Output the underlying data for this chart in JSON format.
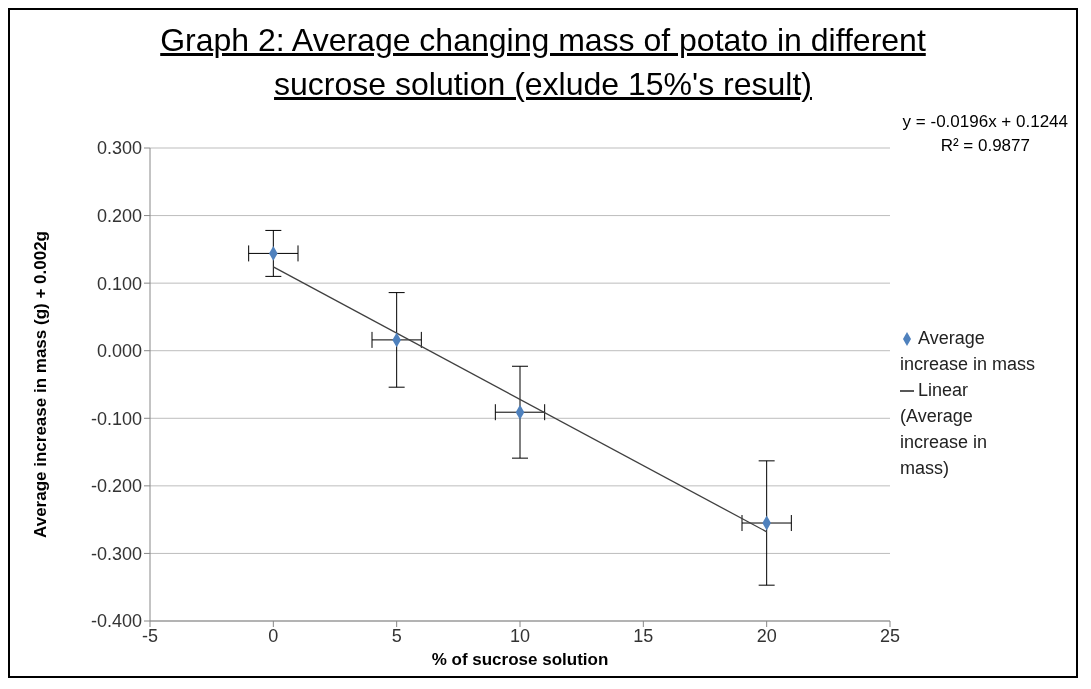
{
  "chart_data": {
    "type": "scatter",
    "title": "Graph 2: Average changing mass of potato in different sucrose solution (exlude 15%'s result)",
    "xlabel": "% of sucrose solution",
    "ylabel": "Average increase in mass (g) + 0.002g",
    "x": [
      0,
      5,
      10,
      20
    ],
    "series": [
      {
        "name": "Average increase in mass",
        "color": "#4f81bd",
        "marker": "diamond",
        "values": [
          0.144,
          0.016,
          -0.091,
          -0.255
        ],
        "errors": [
          0.034,
          0.07,
          0.068,
          0.092
        ],
        "xerrors": [
          1,
          1,
          1,
          1
        ]
      },
      {
        "name": "Linear (Average increase in mass)",
        "type": "line",
        "color": "#404040",
        "marker": "none",
        "line_style": "solid",
        "x": [
          0,
          20
        ],
        "values": [
          0.124,
          -0.268
        ]
      }
    ],
    "xlim": [
      -5,
      25
    ],
    "xticks": [
      -5,
      0,
      5,
      10,
      15,
      20,
      25
    ],
    "ylim": [
      -0.4,
      0.3
    ],
    "yticks": [
      {
        "value": -0.4,
        "label": "-0.400"
      },
      {
        "value": -0.3,
        "label": "-0.300"
      },
      {
        "value": -0.2,
        "label": "-0.200"
      },
      {
        "value": -0.1,
        "label": "-0.100"
      },
      {
        "value": 0,
        "label": "0.000"
      },
      {
        "value": 0.1,
        "label": "0.100"
      },
      {
        "value": 0.2,
        "label": "0.200"
      },
      {
        "value": 0.3,
        "label": "0.300"
      }
    ],
    "grid": "y",
    "legend": "right",
    "annotations": [
      "y = -0.0196x + 0.1244",
      "R² = 0.9877"
    ]
  }
}
